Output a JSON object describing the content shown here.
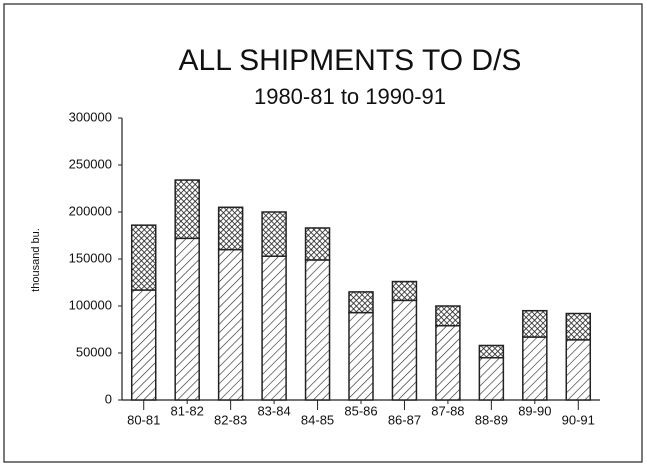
{
  "chart_data": {
    "type": "bar",
    "stacked": true,
    "title": "ALL SHIPMENTS TO D/S",
    "subtitle": "1980-81 to 1990-91",
    "y_label": "thousand bu.",
    "categories": [
      "80-81",
      "81-82",
      "82-83",
      "83-84",
      "84-85",
      "85-86",
      "86-87",
      "87-88",
      "88-89",
      "89-90",
      "90-91"
    ],
    "series": [
      {
        "color": "#222222",
        "pattern": "hatch",
        "values": [
          117000,
          172000,
          160000,
          153000,
          149000,
          93000,
          106000,
          79000,
          45000,
          67000,
          64000
        ]
      },
      {
        "color": "#222222",
        "pattern": "crosshatch",
        "values": [
          69000,
          62000,
          45000,
          47000,
          34000,
          22000,
          20000,
          21000,
          13000,
          28000,
          28000
        ]
      }
    ],
    "ylim": [
      0,
      300000
    ],
    "yticks": [
      0,
      50000,
      100000,
      150000,
      200000,
      250000,
      300000
    ],
    "grid": false
  }
}
